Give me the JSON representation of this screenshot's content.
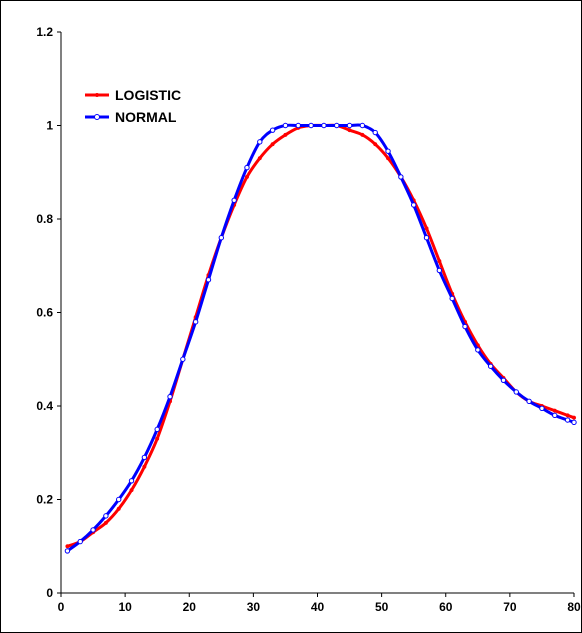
{
  "chart_data": {
    "type": "line",
    "title": "",
    "xlabel": "",
    "ylabel": "",
    "xlim": [
      0,
      80
    ],
    "ylim": [
      0,
      1.2
    ],
    "x_ticks": [
      "0",
      "10",
      "20",
      "30",
      "40",
      "50",
      "60",
      "70",
      "80"
    ],
    "y_ticks": [
      "0",
      "0.2",
      "0.4",
      "0.6",
      "0.8",
      "1",
      "1.2"
    ],
    "grid": false,
    "legend": {
      "position": "top-left"
    },
    "series": [
      {
        "name": "LOGISTIC",
        "color": "#ff0000",
        "marker": "dot",
        "x": [
          1,
          3,
          5,
          7,
          9,
          11,
          13,
          15,
          17,
          19,
          21,
          23,
          25,
          27,
          29,
          31,
          33,
          35,
          37,
          39,
          41,
          43,
          45,
          47,
          49,
          51,
          53,
          55,
          57,
          59,
          61,
          63,
          65,
          67,
          69,
          71,
          73,
          75,
          77,
          79,
          80
        ],
        "y": [
          0.1,
          0.11,
          0.13,
          0.15,
          0.18,
          0.22,
          0.27,
          0.33,
          0.41,
          0.5,
          0.59,
          0.68,
          0.76,
          0.83,
          0.89,
          0.93,
          0.96,
          0.98,
          0.995,
          1.0,
          1.0,
          1.0,
          0.99,
          0.98,
          0.96,
          0.93,
          0.89,
          0.84,
          0.78,
          0.71,
          0.64,
          0.58,
          0.53,
          0.49,
          0.46,
          0.43,
          0.41,
          0.4,
          0.39,
          0.38,
          0.375
        ]
      },
      {
        "name": "NORMAL",
        "color": "#0000ff",
        "marker": "circle",
        "x": [
          1,
          3,
          5,
          7,
          9,
          11,
          13,
          15,
          17,
          19,
          21,
          23,
          25,
          27,
          29,
          31,
          33,
          35,
          37,
          39,
          41,
          43,
          45,
          47,
          49,
          51,
          53,
          55,
          57,
          59,
          61,
          63,
          65,
          67,
          69,
          71,
          73,
          75,
          77,
          79,
          80
        ],
        "y": [
          0.09,
          0.11,
          0.135,
          0.165,
          0.2,
          0.24,
          0.29,
          0.35,
          0.42,
          0.5,
          0.58,
          0.67,
          0.76,
          0.84,
          0.91,
          0.965,
          0.99,
          1.0,
          1.0,
          1.0,
          1.0,
          1.0,
          1.0,
          1.0,
          0.985,
          0.945,
          0.89,
          0.83,
          0.76,
          0.69,
          0.63,
          0.57,
          0.52,
          0.485,
          0.455,
          0.43,
          0.41,
          0.395,
          0.38,
          0.37,
          0.365
        ]
      }
    ]
  }
}
